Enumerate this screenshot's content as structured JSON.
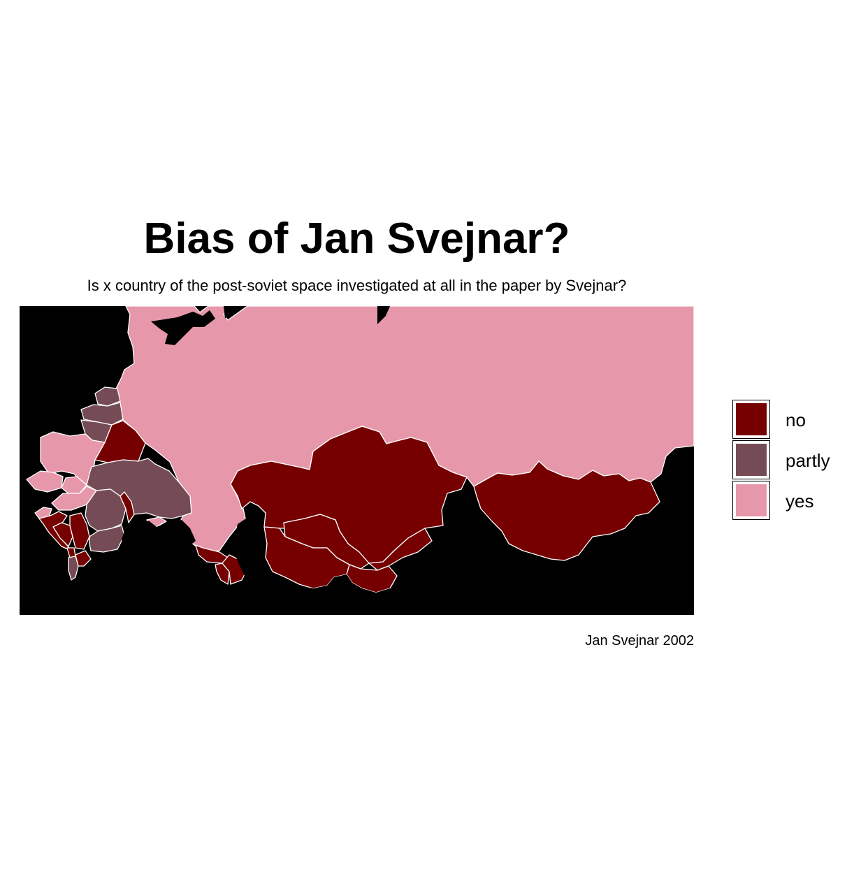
{
  "title": "Bias of Jan Svejnar?",
  "subtitle": "Is x country of the post-soviet space investigated at all in the paper by Svejnar?",
  "caption": "Jan Svejnar 2002",
  "colors": {
    "background": "#000000",
    "border": "#ffffff",
    "no": "#760000",
    "partly": "#754c56",
    "yes": "#e797aa"
  },
  "legend": {
    "items": [
      {
        "key": "no",
        "label": "no",
        "color": "#760000"
      },
      {
        "key": "partly",
        "label": "partly",
        "color": "#754c56"
      },
      {
        "key": "yes",
        "label": "yes",
        "color": "#e797aa"
      }
    ]
  },
  "map": {
    "projection": "geographic (longitude/latitude)",
    "regions": [
      {
        "area": "Russia",
        "category": "yes"
      },
      {
        "area": "Poland",
        "category": "yes"
      },
      {
        "area": "Czech Republic",
        "category": "yes"
      },
      {
        "area": "Slovakia",
        "category": "yes"
      },
      {
        "area": "Hungary",
        "category": "yes"
      },
      {
        "area": "Slovenia",
        "category": "yes"
      },
      {
        "area": "Estonia",
        "category": "partly"
      },
      {
        "area": "Latvia",
        "category": "partly"
      },
      {
        "area": "Lithuania",
        "category": "partly"
      },
      {
        "area": "Ukraine",
        "category": "partly"
      },
      {
        "area": "Romania",
        "category": "partly"
      },
      {
        "area": "Bulgaria",
        "category": "partly"
      },
      {
        "area": "Albania",
        "category": "partly"
      },
      {
        "area": "Belarus",
        "category": "no"
      },
      {
        "area": "Moldova",
        "category": "no"
      },
      {
        "area": "Croatia",
        "category": "no"
      },
      {
        "area": "Bosnia and Herzegovina",
        "category": "no"
      },
      {
        "area": "Serbia",
        "category": "no"
      },
      {
        "area": "Montenegro",
        "category": "no"
      },
      {
        "area": "North Macedonia",
        "category": "no"
      },
      {
        "area": "Georgia",
        "category": "no"
      },
      {
        "area": "Armenia",
        "category": "no"
      },
      {
        "area": "Azerbaijan",
        "category": "no"
      },
      {
        "area": "Kazakhstan",
        "category": "no"
      },
      {
        "area": "Uzbekistan",
        "category": "no"
      },
      {
        "area": "Turkmenistan",
        "category": "no"
      },
      {
        "area": "Kyrgyzstan",
        "category": "no"
      },
      {
        "area": "Tajikistan",
        "category": "no"
      },
      {
        "area": "Mongolia",
        "category": "no"
      }
    ]
  }
}
